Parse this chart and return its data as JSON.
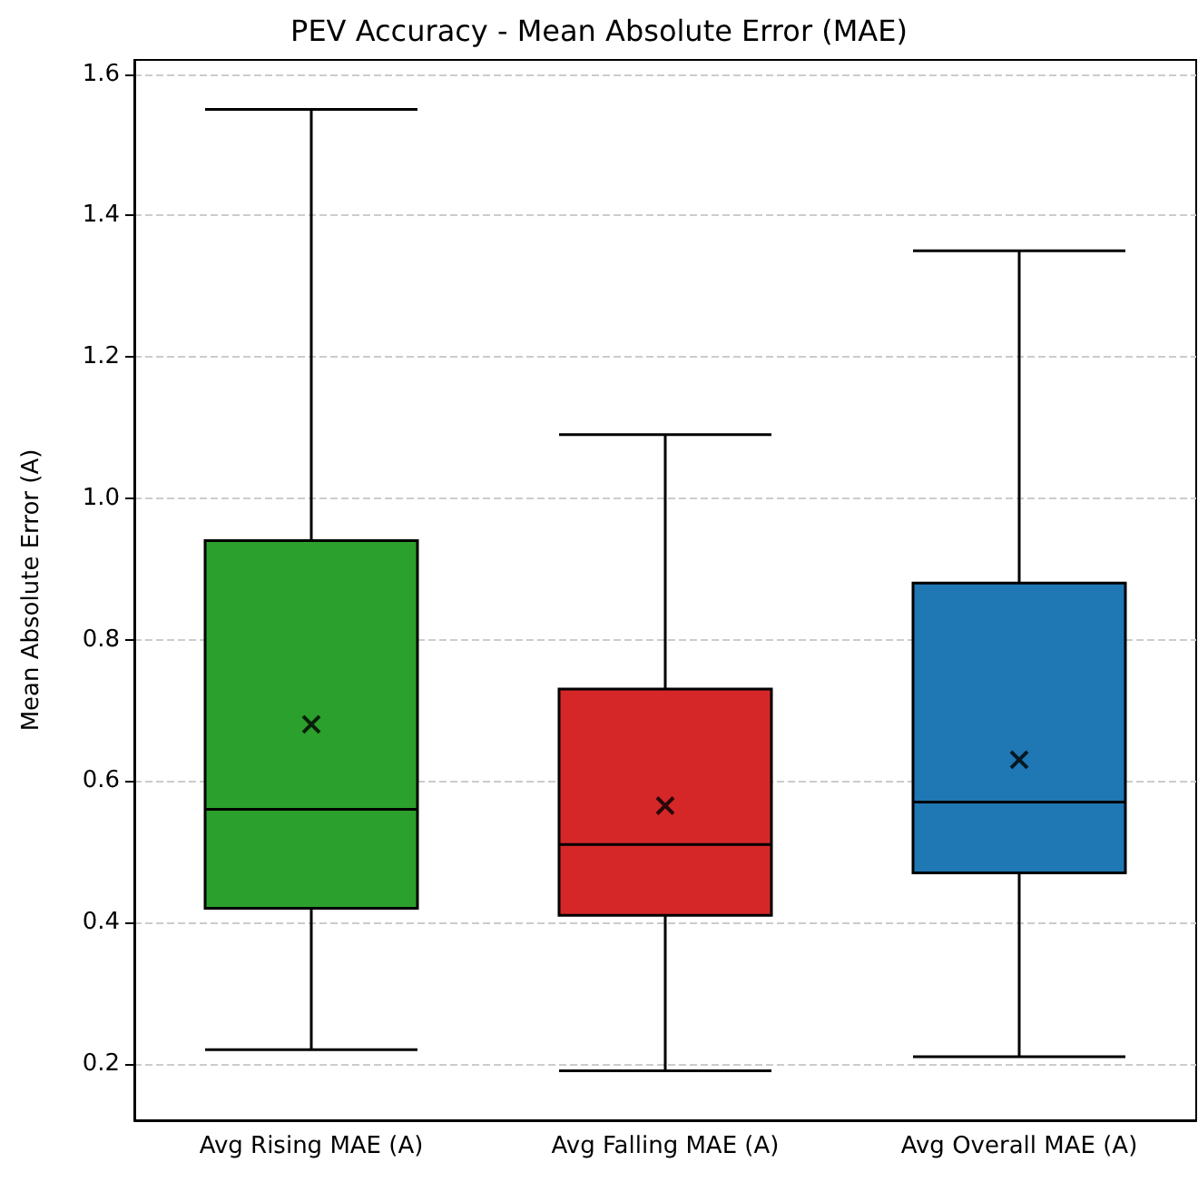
{
  "chart_data": {
    "type": "box",
    "title": "PEV Accuracy - Mean Absolute Error (MAE)",
    "ylabel": "Mean Absolute Error (A)",
    "categories": [
      "Avg Rising MAE (A)",
      "Avg Falling MAE (A)",
      "Avg Overall MAE (A)"
    ],
    "colors": [
      "#2ca02c",
      "#d62728",
      "#1f77b4"
    ],
    "boxes": [
      {
        "low": 0.22,
        "q1": 0.42,
        "median": 0.56,
        "q3": 0.94,
        "high": 1.55,
        "mean": 0.68
      },
      {
        "low": 0.19,
        "q1": 0.41,
        "median": 0.51,
        "q3": 0.73,
        "high": 1.09,
        "mean": 0.565
      },
      {
        "low": 0.21,
        "q1": 0.47,
        "median": 0.57,
        "q3": 0.88,
        "high": 1.35,
        "mean": 0.63
      }
    ],
    "ylim": [
      0.12,
      1.62
    ],
    "yticks": [
      0.2,
      0.4,
      0.6,
      0.8,
      {
        "value": 1,
        "label": "1.0"
      },
      1.2,
      1.4,
      1.6
    ],
    "grid": "y"
  }
}
